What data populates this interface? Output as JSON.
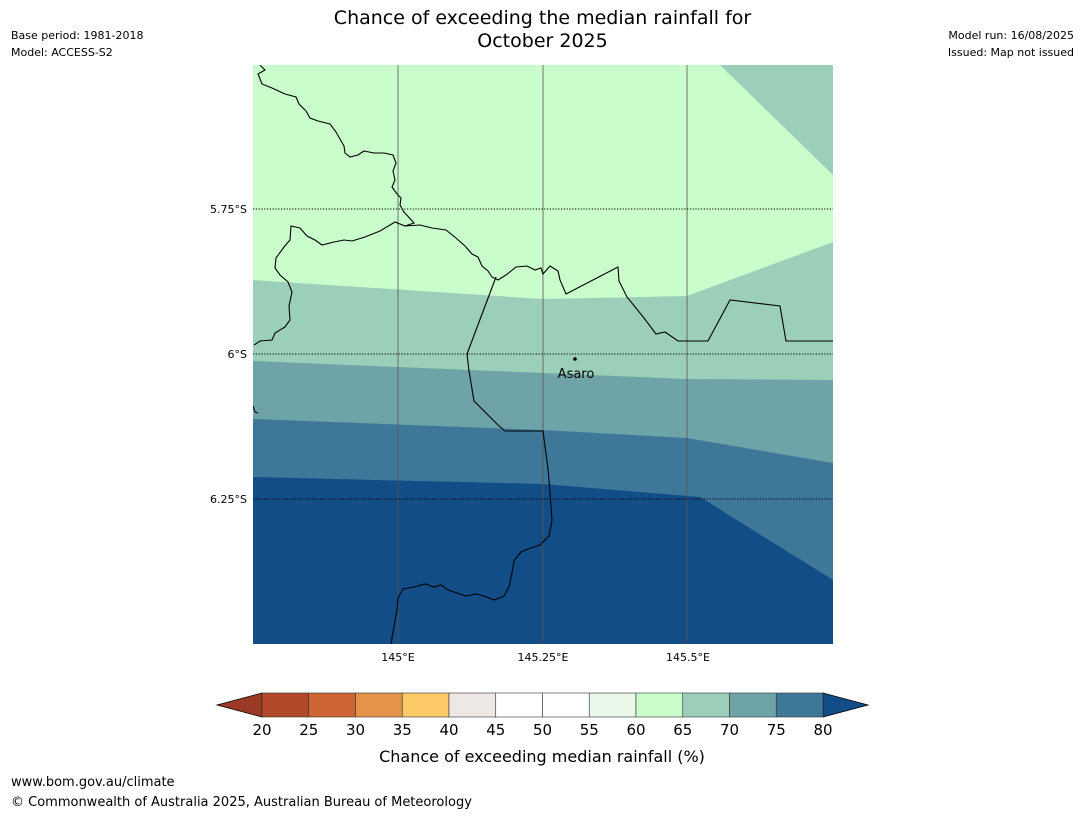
{
  "header": {
    "title_line1": "Chance of exceeding the median rainfall for",
    "title_line2": "October 2025",
    "base_period": "Base period: 1981-2018",
    "model": "Model: ACCESS-S2",
    "model_run": "Model run: 16/08/2025",
    "issued": "Issued: Map not issued"
  },
  "map": {
    "lat_labels": [
      "5.75°S",
      "6°S",
      "6.25°S"
    ],
    "lon_labels": [
      "145°E",
      "145.25°E",
      "145.5°E"
    ],
    "place": {
      "name": "Asaro",
      "lat": -6.01,
      "lon": 145.305
    }
  },
  "colorbar": {
    "ticks": [
      "20",
      "25",
      "30",
      "35",
      "40",
      "45",
      "50",
      "55",
      "60",
      "65",
      "70",
      "75",
      "80"
    ],
    "colors": [
      "#b2482a",
      "#cf6535",
      "#e3944a",
      "#fccb68",
      "#ede8e4",
      "#ffffff",
      "#ffffff",
      "#e9f8e9",
      "#c9fdcb",
      "#9ccfb9",
      "#6ea4a8",
      "#3f7799",
      "#134d87"
    ],
    "under_color": "#9a3a25",
    "over_color": "#134d87",
    "label": "Chance of exceeding median rainfall (%)"
  },
  "footer": {
    "url": "www.bom.gov.au/climate",
    "copyright": "© Commonwealth of Australia 2025, Australian Bureau of Meteorology"
  }
}
